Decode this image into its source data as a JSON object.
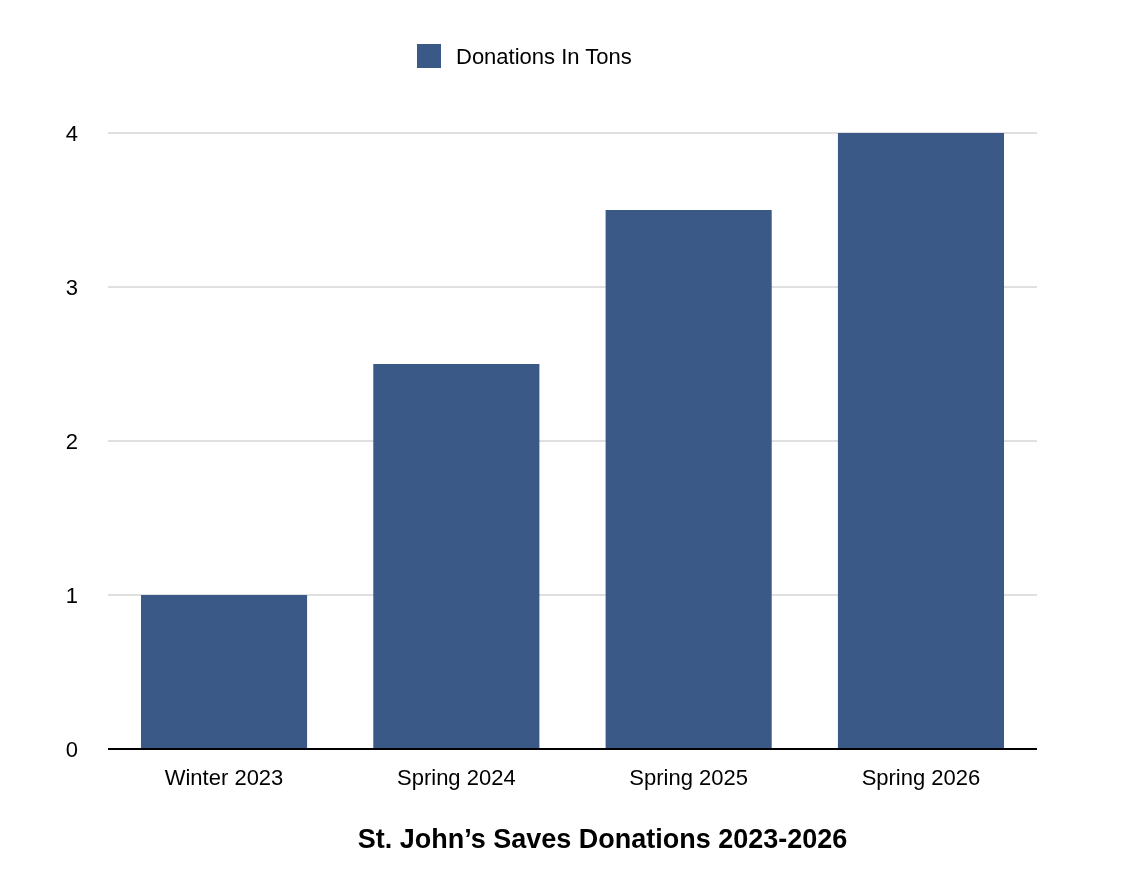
{
  "chart_data": {
    "type": "bar",
    "title": "St. John’s Saves Donations 2023-2026",
    "categories": [
      "Winter 2023",
      "Spring 2024",
      "Spring 2025",
      "Spring 2026"
    ],
    "series": [
      {
        "name": "Donations In Tons",
        "color": "#3a5987",
        "values": [
          1,
          2.5,
          3.5,
          4
        ]
      }
    ],
    "ylim": [
      0,
      4
    ],
    "yticks": [
      0,
      1,
      2,
      3,
      4
    ],
    "grid": "y",
    "legend": "top"
  }
}
